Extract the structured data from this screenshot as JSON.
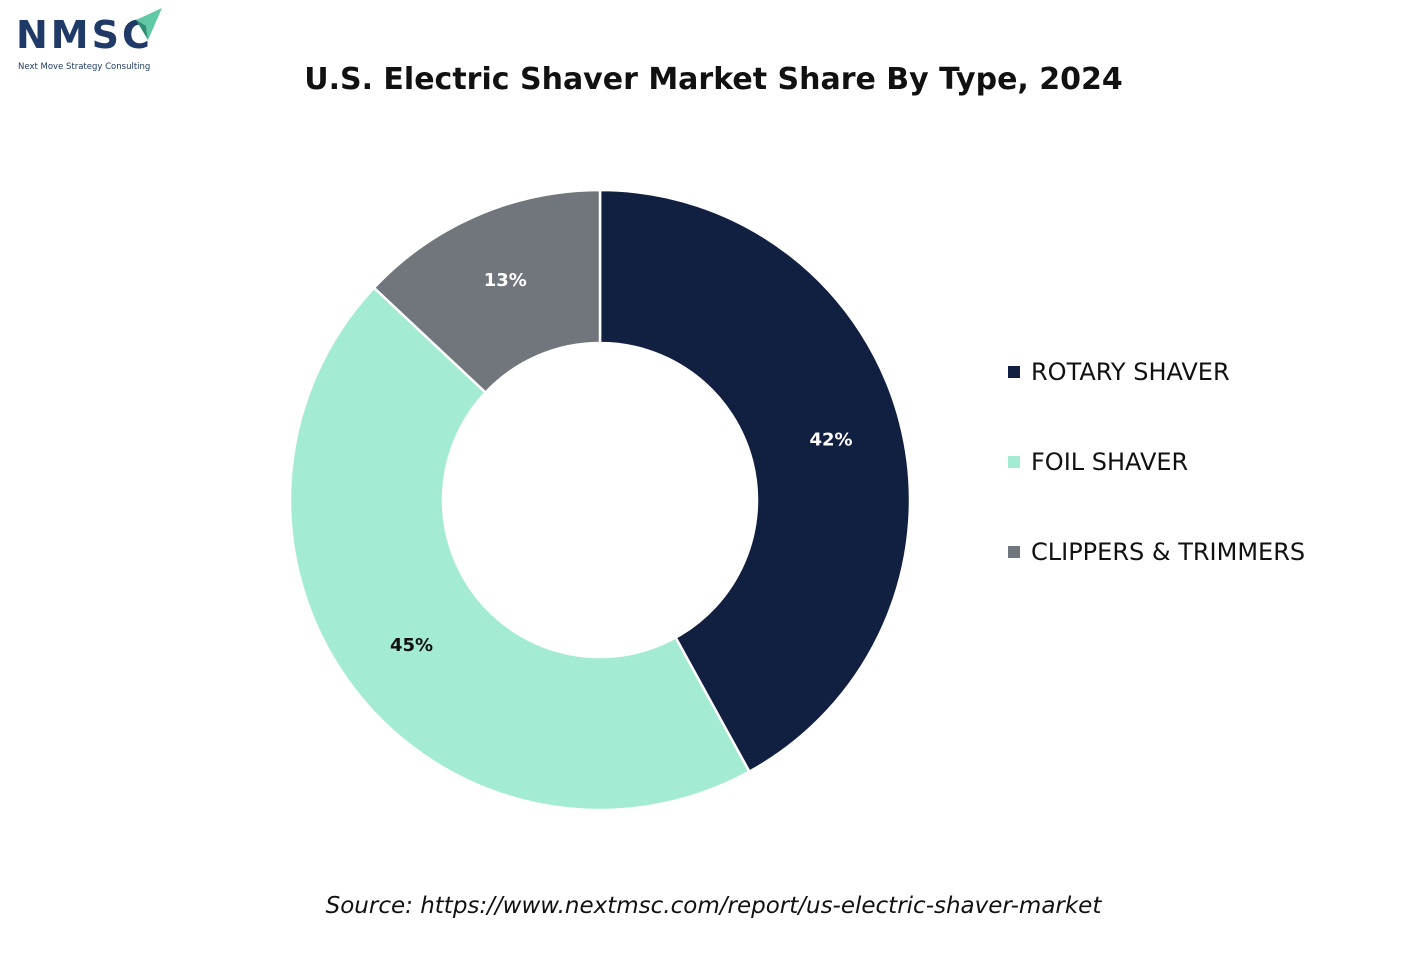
{
  "logo": {
    "name": "NMSC",
    "tagline": "Next Move Strategy Consulting"
  },
  "colors": {
    "brand": "#1f3a66",
    "brand_accent": "#5fc9a6"
  },
  "chart_data": {
    "type": "pie",
    "donut": true,
    "title": "U.S. Electric Shaver Market Share By Type, 2024",
    "categories": [
      "ROTARY SHAVER",
      "FOIL SHAVER",
      "CLIPPERS & TRIMMERS"
    ],
    "values": [
      42,
      45,
      13
    ],
    "data_labels": [
      "42%",
      "45%",
      "13%"
    ],
    "colors": [
      "#111f40",
      "#a3ebd2",
      "#71757c"
    ],
    "label_colors": [
      "#ffffff",
      "#111111",
      "#ffffff"
    ],
    "start_angle": "12 o'clock",
    "direction": "clockwise",
    "legend_position": "right"
  },
  "source": "Source: https://www.nextmsc.com/report/us-electric-shaver-market"
}
